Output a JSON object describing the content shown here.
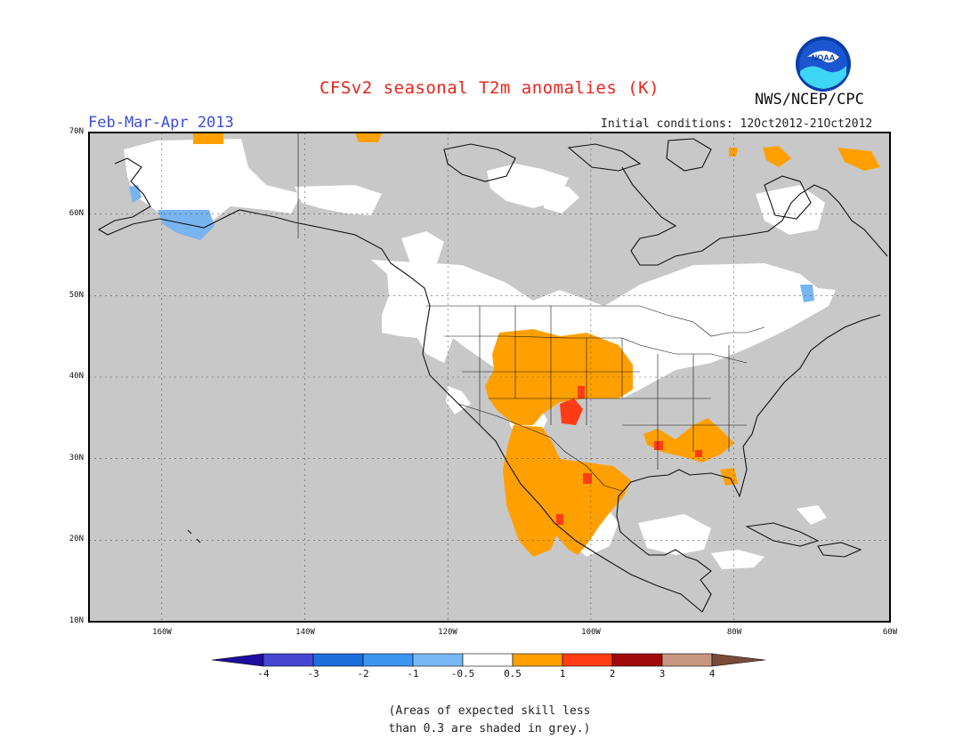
{
  "header": {
    "title": "CFSv2 seasonal T2m anomalies (K)",
    "period": "Feb-Mar-Apr 2013",
    "org": "NWS/NCEP/CPC",
    "initial_conditions": "Initial conditions: 12Oct2012-21Oct2012",
    "logo_text": "NOAA"
  },
  "map": {
    "lat_labels": [
      "70N",
      "60N",
      "50N",
      "40N",
      "30N",
      "20N",
      "10N"
    ],
    "lon_labels": [
      "160W",
      "140W",
      "120W",
      "100W",
      "80W",
      "60W"
    ],
    "lat_range": [
      10,
      70
    ],
    "lon_range": [
      -172,
      -60
    ],
    "grid": "dotted",
    "colors": {
      "no_skill": "#c8c8c8",
      "neutral": "#ffffff",
      "warm_0_5_1": "#ffa000",
      "warm_1_2": "#ff3c14",
      "cool_minus1_minus0_5": "#78b4f0"
    },
    "regions": [
      {
        "name": "Interior Alaska",
        "category": "neutral"
      },
      {
        "name": "Northern Alaska coast",
        "category": "warm 0.5 to 1"
      },
      {
        "name": "Southwest Alaska",
        "category": "cool -1 to -0.5"
      },
      {
        "name": "Western Canada / Northern Plains",
        "category": "neutral"
      },
      {
        "name": "Central Rockies and Southern Plains",
        "category": "warm 0.5 to 1"
      },
      {
        "name": "New Mexico and Texas panhandle",
        "category": "warm 1 to 2"
      },
      {
        "name": "Gulf Coast",
        "category": "warm 0.5 to 1"
      },
      {
        "name": "Northern Mexico",
        "category": "warm 0.5 to 1"
      },
      {
        "name": "Great Lakes and Northeast",
        "category": "neutral"
      },
      {
        "name": "Hudson Bay and eastern Canada",
        "category": "no skill"
      },
      {
        "name": "Pacific and Atlantic oceans",
        "category": "no skill"
      }
    ]
  },
  "colorbar": {
    "labels": [
      "-4",
      "-3",
      "-2",
      "-1",
      "-0.5",
      "0.5",
      "1",
      "2",
      "3",
      "4"
    ],
    "colors": [
      "#1e0ea0",
      "#4646d2",
      "#1e6edc",
      "#3c96f0",
      "#78b9f5",
      "#ffffff",
      "#ffa000",
      "#ff3c14",
      "#a00a0a",
      "#c89682",
      "#7a4b3a"
    ]
  },
  "note": {
    "line1": "(Areas of expected skill less",
    "line2": "than 0.3 are shaded in grey.)"
  }
}
